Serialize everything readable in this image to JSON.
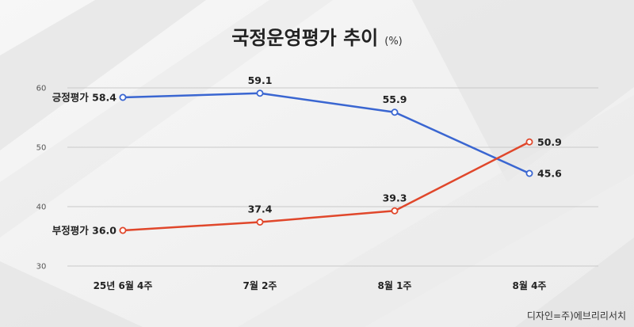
{
  "chart_data": {
    "type": "line",
    "title": "국정운영평가 추이",
    "unit": "(%)",
    "categories": [
      "25년 6월 4주",
      "7월 2주",
      "8월 1주",
      "8월 4주"
    ],
    "series": [
      {
        "name": "긍정평가",
        "values": [
          58.4,
          59.1,
          55.9,
          45.6
        ],
        "color": "#3a66d1"
      },
      {
        "name": "부정평가",
        "values": [
          36.0,
          37.4,
          39.3,
          50.9
        ],
        "color": "#e0472b"
      }
    ],
    "labels": [
      [
        "긍정평가 58.4",
        "59.1",
        "55.9",
        "45.6"
      ],
      [
        "부정평가 36.0",
        "37.4",
        "39.3",
        "50.9"
      ]
    ],
    "yticks": [
      "60",
      "50",
      "40",
      "30"
    ],
    "ylim": [
      30,
      60
    ],
    "grid": true,
    "legend": "none"
  },
  "credit": "디자인=주)에브리리서치"
}
